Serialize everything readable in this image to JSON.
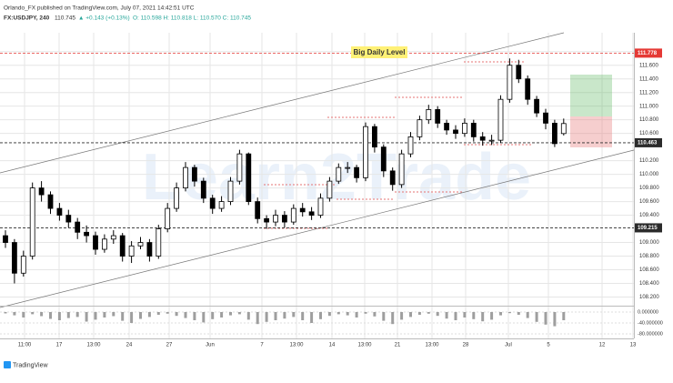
{
  "chart_data": {
    "type": "candlestick",
    "title": "Orlando_FX published on TradingView.com, July 07, 2021 14:42:51 UTC",
    "subtitle": "FX:USDJPY, 240",
    "last": "110.745",
    "change": "▲ +0.143 (+0.13%)",
    "ohlc_text": "O: 110.598  H: 110.818  L: 110.570  C: 110.745",
    "annotation": "Big Daily Level",
    "watermark": "Learn2Trade",
    "brand": "TradingView",
    "grid": true,
    "colors": {
      "up": "#ffffff",
      "down": "#000000",
      "wick": "#000000"
    },
    "time_labels": [
      "11:00",
      "17",
      "13:00",
      "24",
      "27",
      "Jun",
      "7",
      "13:00",
      "14",
      "13:00",
      "21",
      "13:00",
      "28",
      "Jul",
      "5",
      "12",
      "13"
    ],
    "open": [
      109.1,
      109.0,
      108.55,
      108.8,
      109.8,
      109.7,
      109.5,
      109.4,
      109.3,
      109.15,
      109.1,
      108.9,
      109.05,
      109.1,
      108.8,
      108.95,
      109.0,
      108.8,
      109.2,
      109.5,
      109.8,
      110.1,
      109.9,
      109.65,
      109.5,
      109.6,
      109.9,
      110.3,
      109.6,
      109.35,
      109.3,
      109.4,
      109.3,
      109.5,
      109.45,
      109.4,
      109.65,
      109.9,
      110.1,
      110.1,
      109.95,
      110.7,
      110.4,
      110.05,
      109.85,
      110.3,
      110.55,
      110.8,
      110.95,
      110.75,
      110.65,
      110.6,
      110.75,
      110.55,
      110.5,
      110.5,
      111.1,
      111.6,
      111.4,
      111.1,
      110.9,
      110.75,
      110.598
    ],
    "high": [
      109.18,
      109.05,
      108.88,
      109.88,
      109.9,
      109.75,
      109.58,
      109.48,
      109.36,
      109.25,
      109.16,
      109.12,
      109.18,
      109.14,
      109.02,
      109.08,
      109.05,
      109.26,
      109.58,
      109.88,
      110.18,
      110.14,
      109.95,
      109.7,
      109.68,
      109.96,
      110.36,
      110.32,
      109.66,
      109.4,
      109.48,
      109.46,
      109.56,
      109.58,
      109.52,
      109.72,
      109.96,
      110.16,
      110.18,
      110.14,
      110.76,
      110.74,
      110.44,
      110.1,
      110.36,
      110.62,
      110.86,
      111.02,
      111.0,
      110.8,
      110.72,
      110.82,
      110.8,
      110.62,
      110.58,
      111.16,
      111.7,
      111.68,
      111.45,
      111.15,
      110.96,
      110.8,
      110.818
    ],
    "low": [
      108.92,
      108.4,
      108.5,
      108.75,
      109.6,
      109.42,
      109.32,
      109.22,
      109.05,
      109.0,
      108.82,
      108.85,
      108.98,
      108.72,
      108.7,
      108.9,
      108.72,
      108.76,
      109.15,
      109.45,
      109.75,
      109.82,
      109.58,
      109.42,
      109.45,
      109.55,
      109.85,
      109.55,
      109.28,
      109.2,
      109.24,
      109.22,
      109.26,
      109.38,
      109.33,
      109.36,
      109.6,
      109.86,
      110.02,
      109.88,
      109.9,
      110.32,
      109.96,
      109.76,
      109.8,
      110.25,
      110.5,
      110.74,
      110.68,
      110.58,
      110.52,
      110.55,
      110.48,
      110.42,
      110.43,
      110.46,
      111.05,
      111.34,
      111.02,
      110.84,
      110.66,
      110.4,
      110.57
    ],
    "close": [
      109.0,
      108.55,
      108.8,
      109.8,
      109.7,
      109.5,
      109.4,
      109.3,
      109.15,
      109.1,
      108.9,
      109.05,
      109.1,
      108.8,
      108.95,
      109.0,
      108.8,
      109.2,
      109.5,
      109.8,
      110.1,
      109.9,
      109.65,
      109.5,
      109.6,
      109.9,
      110.3,
      109.6,
      109.35,
      109.3,
      109.4,
      109.3,
      109.5,
      109.45,
      109.4,
      109.65,
      109.9,
      110.1,
      110.1,
      109.95,
      110.7,
      110.4,
      110.05,
      109.85,
      110.3,
      110.55,
      110.8,
      110.95,
      110.75,
      110.65,
      110.6,
      110.75,
      110.55,
      110.5,
      110.5,
      111.1,
      111.6,
      111.4,
      111.1,
      110.9,
      110.75,
      110.45,
      110.745
    ],
    "ylim": [
      108.1,
      112.05
    ],
    "yticks": [
      {
        "value": 108.2,
        "label": "108.200"
      },
      {
        "value": 108.4,
        "label": "108.400"
      },
      {
        "value": 108.6,
        "label": "108.600"
      },
      {
        "value": 108.8,
        "label": "108.800"
      },
      {
        "value": 109.0,
        "label": "109.000"
      },
      {
        "value": 109.4,
        "label": "109.400"
      },
      {
        "value": 109.6,
        "label": "109.600"
      },
      {
        "value": 109.8,
        "label": "109.800"
      },
      {
        "value": 110.0,
        "label": "110.000"
      },
      {
        "value": 110.2,
        "label": "110.200"
      },
      {
        "value": 110.6,
        "label": "110.600"
      },
      {
        "value": 110.8,
        "label": "110.800"
      },
      {
        "value": 111.0,
        "label": "111.000"
      },
      {
        "value": 111.2,
        "label": "111.200"
      },
      {
        "value": 111.4,
        "label": "111.400"
      },
      {
        "value": 111.6,
        "label": "111.600"
      },
      {
        "value": 111.8,
        "label": "111.800"
      }
    ],
    "levels": [
      {
        "value": 111.778,
        "label": "111.778",
        "color": "#e53935"
      },
      {
        "value": 110.463,
        "label": "110.463",
        "color": "#2b2b2b"
      },
      {
        "value": 109.215,
        "label": "109.215",
        "color": "#2b2b2b"
      }
    ],
    "indicator": {
      "color": "#9e9e9e",
      "values": [
        -5,
        -12,
        -20,
        -8,
        -15,
        -25,
        -30,
        -22,
        -18,
        -35,
        -28,
        -20,
        -15,
        -32,
        -40,
        -25,
        -18,
        -10,
        -6,
        -14,
        -22,
        -30,
        -38,
        -26,
        -20,
        -12,
        -8,
        -28,
        -44,
        -36,
        -30,
        -24,
        -18,
        -30,
        -40,
        -26,
        -14,
        -8,
        -12,
        -20,
        -6,
        -16,
        -32,
        -44,
        -28,
        -18,
        -10,
        -6,
        -14,
        -24,
        -30,
        -20,
        -26,
        -34,
        -28,
        -12,
        -4,
        -10,
        -22,
        -36,
        -46,
        -52,
        -30
      ],
      "ylim": [
        -90,
        10
      ],
      "yticks": [
        {
          "value": 0,
          "label": "0.000000"
        },
        {
          "value": -40,
          "label": "-40.000000"
        },
        {
          "value": -80,
          "label": "-80.000000"
        }
      ]
    }
  }
}
